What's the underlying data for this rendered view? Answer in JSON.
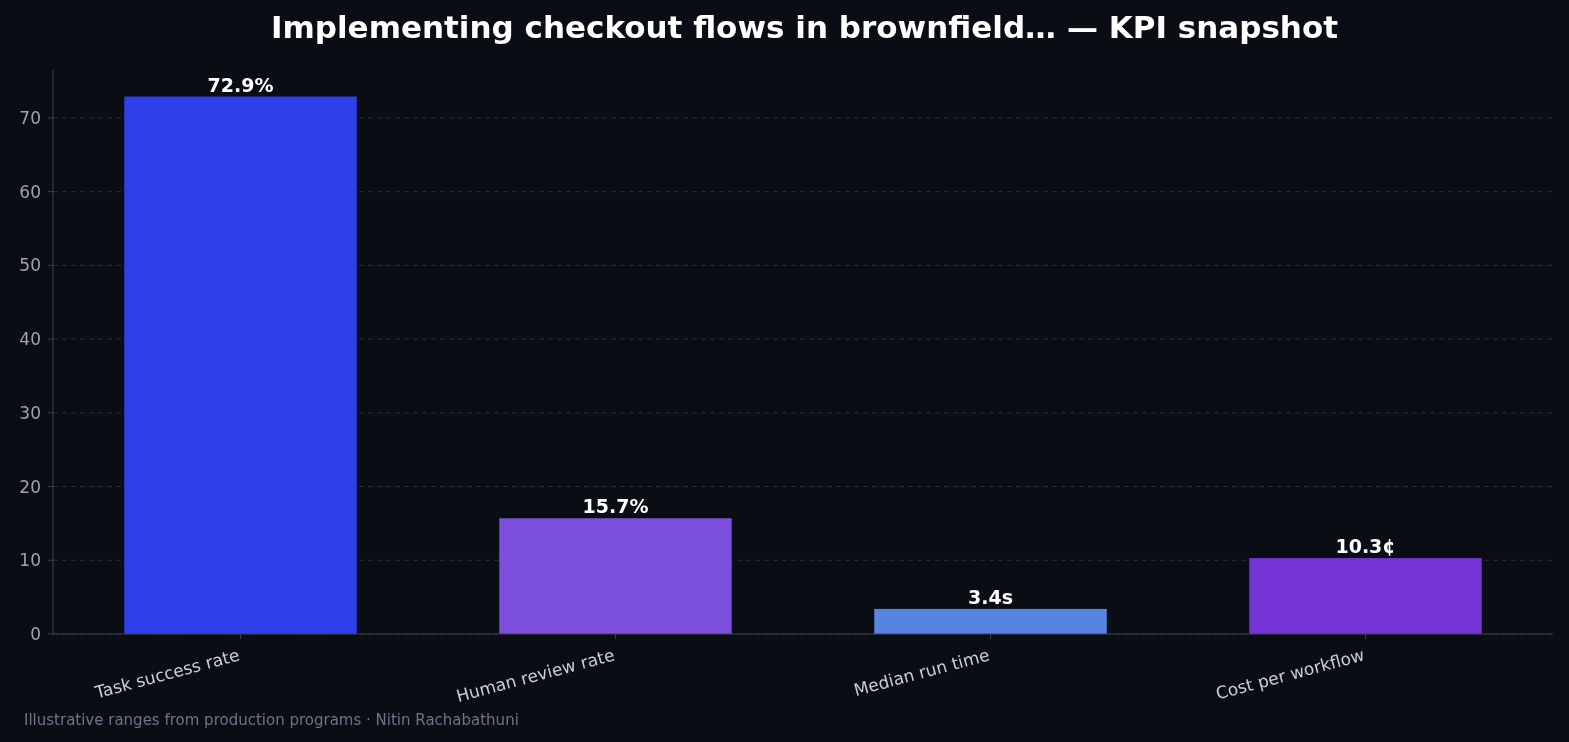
{
  "chart_data": {
    "type": "bar",
    "title": "Implementing checkout flows in brownfield… — KPI snapshot",
    "categories": [
      "Task success rate",
      "Human review rate",
      "Median run time",
      "Cost per workflow"
    ],
    "values": [
      72.9,
      15.7,
      3.4,
      10.3
    ],
    "colors": [
      "#2f40ea",
      "#7c4fdc",
      "#5585e0",
      "#7434d8"
    ],
    "value_labels": [
      "72.9%",
      "15.7%",
      "3.4s",
      "10.3¢"
    ],
    "ylim": [
      0,
      76.5
    ],
    "yticks": [
      0,
      10,
      20,
      30,
      40,
      50,
      60,
      70
    ],
    "grid": "y",
    "annotations": [
      "Illustrative ranges from production programs · Nitin Rachabathuni"
    ]
  }
}
